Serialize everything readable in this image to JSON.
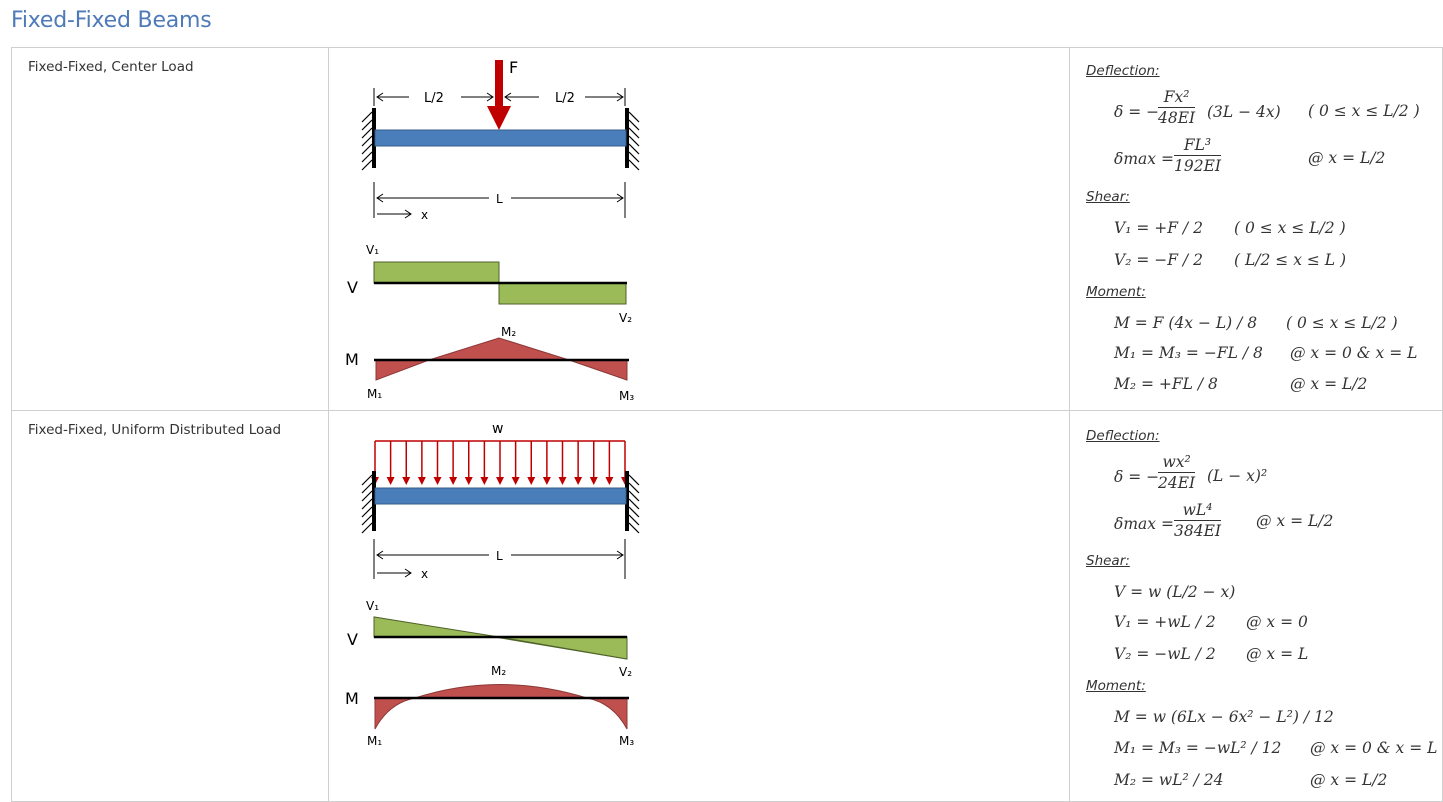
{
  "page": {
    "title": "Fixed-Fixed Beams"
  },
  "cases": [
    {
      "name": "Fixed-Fixed, Center Load",
      "figure": {
        "load_label": "F",
        "half_label": "L/2",
        "length_label": "L",
        "x_label": "x",
        "shear_label": "V",
        "moment_label": "M",
        "v1": "V₁",
        "v2": "V₂",
        "m1": "M₁",
        "m2": "M₂",
        "m3": "M₃"
      },
      "deflection": {
        "heading": "Deflection:",
        "delta": "δ = −",
        "eq1_num": "Fx²",
        "eq1_den": "48EI",
        "eq1_tail": "(3L − 4x)",
        "eq1_range": "( 0 ≤ x ≤ L/2 )",
        "delta_max": "δmax =",
        "eq2_num": "FL³",
        "eq2_den": "192EI",
        "eq2_at": "@ x = L/2"
      },
      "shear": {
        "heading": "Shear:",
        "lines": [
          {
            "eq": "V₁ = +F / 2",
            "cond": "( 0 ≤ x ≤ L/2 )"
          },
          {
            "eq": "V₂ = −F / 2",
            "cond": "( L/2 ≤ x ≤ L )"
          }
        ]
      },
      "moment": {
        "heading": "Moment:",
        "lines": [
          {
            "eq": "M = F (4x − L) / 8",
            "cond": "( 0 ≤ x ≤ L/2 )"
          },
          {
            "eq": "M₁ = M₃ = −FL / 8",
            "cond": "@ x = 0 & x = L"
          },
          {
            "eq": "M₂ = +FL / 8",
            "cond": "@ x = L/2"
          }
        ]
      }
    },
    {
      "name": "Fixed-Fixed, Uniform Distributed Load",
      "figure": {
        "load_label": "w",
        "length_label": "L",
        "x_label": "x",
        "shear_label": "V",
        "moment_label": "M",
        "v1": "V₁",
        "v2": "V₂",
        "m1": "M₁",
        "m2": "M₂",
        "m3": "M₃"
      },
      "deflection": {
        "heading": "Deflection:",
        "delta": "δ = −",
        "eq1_num": "wx²",
        "eq1_den": "24EI",
        "eq1_tail": "(L − x)²",
        "delta_max": "δmax =",
        "eq2_num": "wL⁴",
        "eq2_den": "384EI",
        "eq2_at": "@ x = L/2"
      },
      "shear": {
        "heading": "Shear:",
        "lines": [
          {
            "eq": "V = w (L/2 − x)",
            "cond": ""
          },
          {
            "eq": "V₁ = +wL / 2",
            "cond": "@ x = 0"
          },
          {
            "eq": "V₂ = −wL / 2",
            "cond": "@ x = L"
          }
        ]
      },
      "moment": {
        "heading": "Moment:",
        "lines": [
          {
            "eq": "M = w (6Lx − 6x² − L²) / 12",
            "cond": ""
          },
          {
            "eq": "M₁ = M₃ = −wL² / 12",
            "cond": "@ x = 0 & x = L"
          },
          {
            "eq": "M₂ = wL² / 24",
            "cond": "@ x = L/2"
          }
        ]
      }
    }
  ]
}
